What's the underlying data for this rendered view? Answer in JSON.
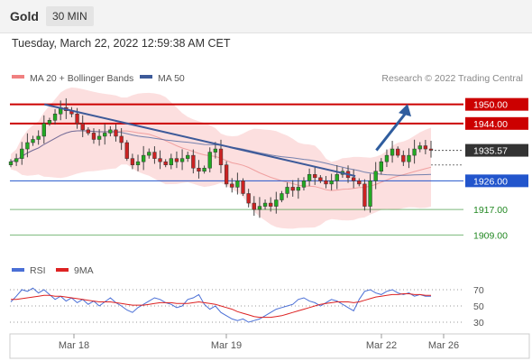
{
  "header": {
    "instrument": "Gold",
    "timeframe": "30 MIN",
    "timestamp": "Tuesday, March 22, 2022 12:59:38 AM CET"
  },
  "legend": {
    "items": [
      {
        "label": "MA 20 + Bollinger Bands",
        "color": "#f08080"
      },
      {
        "label": "MA 50",
        "color": "#3d5a99"
      }
    ],
    "source": "Research © 2022 Trading Central"
  },
  "colors": {
    "resistance": "#cc0000",
    "pivot": "#2255cc",
    "support": "#228822",
    "candle_up": "#22aa22",
    "candle_down": "#cc2222",
    "band_fill": "#fbd4d4",
    "ma50": "#3d5a99",
    "trendline": "#3d5a99",
    "arrow": "#2f5d9e",
    "current_price_tag": "#333333",
    "rsi_line": "#4a6fd6",
    "rsi_ma_line": "#dd2222"
  },
  "chart_data": [
    {
      "type": "candlestick",
      "title": "",
      "x_ticks": [
        "Mar 18",
        "Mar 19",
        "Mar 22",
        "Mar 26"
      ],
      "ylim": [
        1904,
        1955
      ],
      "grid": false,
      "legend_placement": "top-left",
      "current_price": 1935.57,
      "levels": [
        {
          "label": "1950.00",
          "value": 1950.0,
          "kind": "resistance"
        },
        {
          "label": "1944.00",
          "value": 1944.0,
          "kind": "resistance"
        },
        {
          "label": "1926.00",
          "value": 1926.0,
          "kind": "pivot"
        },
        {
          "label": "1917.00",
          "value": 1917.0,
          "kind": "support"
        },
        {
          "label": "1909.00",
          "value": 1909.0,
          "kind": "support"
        }
      ],
      "close_series": [
        1932,
        1933,
        1936,
        1938,
        1939,
        1940,
        1944,
        1945,
        1947,
        1949,
        1948,
        1947,
        1944,
        1942,
        1941,
        1939,
        1940,
        1941,
        1942,
        1940,
        1938,
        1933,
        1931,
        1932,
        1934,
        1935,
        1933,
        1932,
        1931,
        1933,
        1932,
        1933,
        1934,
        1930,
        1929,
        1930,
        1935,
        1936,
        1931,
        1925,
        1924,
        1926,
        1922,
        1919,
        1917,
        1918,
        1919,
        1918,
        1920,
        1922,
        1924,
        1923,
        1924,
        1926,
        1928,
        1927,
        1926,
        1925,
        1926,
        1928,
        1929,
        1927,
        1926,
        1925,
        1918,
        1926,
        1929,
        1932,
        1934,
        1936,
        1934,
        1932,
        1934,
        1936,
        1937,
        1936,
        1935.57
      ],
      "trendline": {
        "from": [
          0.08,
          1950
        ],
        "to": [
          0.82,
          1927.5
        ]
      },
      "forecast_arrow": {
        "from": [
          0.87,
          1935.57
        ],
        "to": [
          0.94,
          1949
        ]
      }
    },
    {
      "type": "line",
      "series": [
        {
          "name": "RSI",
          "values": [
            55,
            62,
            70,
            68,
            72,
            66,
            70,
            64,
            58,
            62,
            56,
            60,
            54,
            58,
            52,
            56,
            50,
            55,
            60,
            54,
            50,
            45,
            42,
            48,
            52,
            56,
            60,
            58,
            54,
            52,
            48,
            50,
            58,
            60,
            64,
            52,
            46,
            50,
            42,
            38,
            34,
            32,
            34,
            30,
            32,
            34,
            38,
            42,
            46,
            48,
            50,
            52,
            58,
            60,
            56,
            54,
            50,
            54,
            58,
            56,
            52,
            48,
            44,
            58,
            68,
            70,
            66,
            64,
            68,
            70,
            66,
            64,
            66,
            62,
            64,
            62,
            62
          ]
        },
        {
          "name": "9MA",
          "values": [
            58,
            58,
            59,
            60,
            61,
            62,
            63,
            63,
            62,
            62,
            61,
            60,
            59,
            58,
            57,
            56,
            55,
            55,
            55,
            54,
            53,
            52,
            51,
            51,
            51,
            52,
            53,
            54,
            54,
            54,
            53,
            53,
            53,
            54,
            55,
            54,
            53,
            52,
            50,
            48,
            46,
            43,
            41,
            39,
            37,
            36,
            36,
            36,
            37,
            38,
            40,
            42,
            44,
            46,
            48,
            50,
            52,
            53,
            54,
            55,
            55,
            55,
            54,
            55,
            57,
            59,
            61,
            62,
            63,
            64,
            64,
            65,
            65,
            64,
            64,
            63,
            63
          ]
        }
      ],
      "y_ticks": [
        70,
        50,
        30
      ],
      "ylim": [
        20,
        80
      ]
    }
  ]
}
